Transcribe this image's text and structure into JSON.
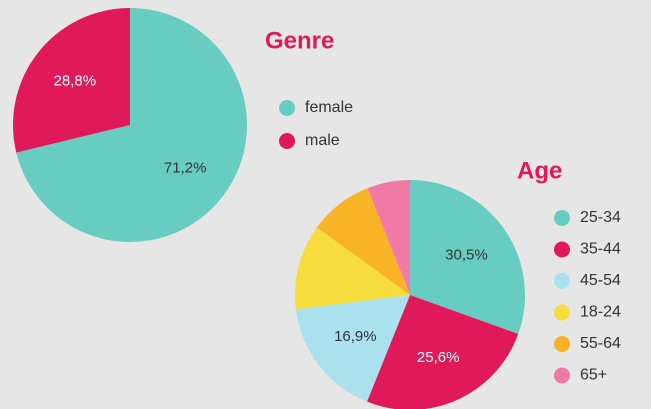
{
  "chart_data": [
    {
      "type": "pie",
      "title": "Genre",
      "categories": [
        "female",
        "male"
      ],
      "values": [
        71.2,
        28.8
      ],
      "value_labels": [
        "71,2%",
        "28,8%"
      ],
      "colors": [
        "#68cdc1",
        "#e0195a"
      ]
    },
    {
      "type": "pie",
      "title": "Age",
      "categories": [
        "25-34",
        "35-44",
        "45-54",
        "18-24",
        "55-64",
        "65+"
      ],
      "values": [
        30.5,
        25.6,
        16.9,
        12,
        9,
        6
      ],
      "value_labels": [
        "30,5%",
        "25,6%",
        "16,9%",
        null,
        null,
        null
      ],
      "colors": [
        "#68cdc1",
        "#e0195a",
        "#a9e1ee",
        "#f6dc3c",
        "#f8b326",
        "#f07aa5"
      ]
    }
  ]
}
